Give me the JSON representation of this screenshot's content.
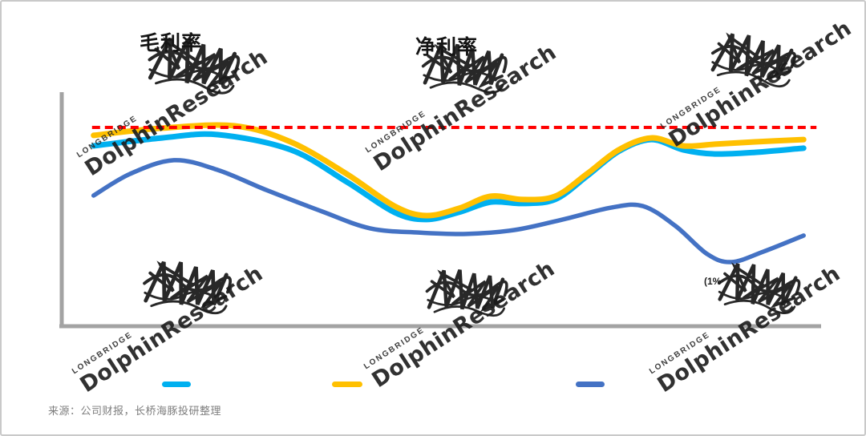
{
  "page": {
    "background": "#ffffff",
    "border_color": "#c9c9c9"
  },
  "titles": {
    "left": "毛利率",
    "center": "净利率"
  },
  "annotation": {
    "label": "(1%"
  },
  "source_note": "来源：公司财报，长桥海豚投研整理",
  "watermark": {
    "brand": "DolphinResearch",
    "subbrand": "LONGBRIDGE"
  },
  "legend": {
    "items": [
      {
        "name": "cyan-series",
        "color": "#00B0F0",
        "label": ""
      },
      {
        "name": "yellow-series",
        "color": "#FFC000",
        "label": ""
      },
      {
        "name": "blue-series",
        "color": "#4472C4",
        "label": ""
      }
    ]
  },
  "chart_data": {
    "type": "line",
    "title": "",
    "xlabel": "",
    "ylabel": "",
    "x_axis": {
      "range": [
        0,
        100
      ],
      "tick_labels_visible": false
    },
    "y_axis": {
      "range": [
        0,
        100
      ],
      "tick_labels_visible": false
    },
    "grid": false,
    "legend_position": "bottom",
    "axis_color": "#a3a3a3",
    "reference_line": {
      "name": "red-dashed-target",
      "value": 85.5,
      "x_range": [
        4.0,
        99.6
      ],
      "color": "#FF0000",
      "style": "dashed",
      "width": 4
    },
    "series": [
      {
        "name": "blue-line",
        "color": "#4472C4",
        "width": 5.5,
        "points": [
          [
            4.2,
            56.2
          ],
          [
            9.0,
            65.5
          ],
          [
            14.8,
            71.4
          ],
          [
            20.6,
            67.2
          ],
          [
            27.0,
            58.6
          ],
          [
            34.4,
            49.3
          ],
          [
            40.7,
            42.1
          ],
          [
            47.1,
            40.3
          ],
          [
            53.4,
            39.7
          ],
          [
            59.8,
            41.4
          ],
          [
            66.1,
            45.9
          ],
          [
            72.5,
            51.0
          ],
          [
            76.7,
            51.7
          ],
          [
            81.0,
            43.1
          ],
          [
            85.2,
            31.0
          ],
          [
            88.4,
            27.6
          ],
          [
            92.6,
            32.1
          ],
          [
            97.9,
            39.0
          ]
        ]
      },
      {
        "name": "cyan-line",
        "color": "#00B0F0",
        "width": 7,
        "points": [
          [
            4.2,
            77.6
          ],
          [
            13.2,
            81.0
          ],
          [
            20.6,
            82.4
          ],
          [
            30.2,
            75.9
          ],
          [
            37.6,
            62.1
          ],
          [
            43.9,
            49.0
          ],
          [
            48.1,
            45.9
          ],
          [
            52.4,
            49.0
          ],
          [
            56.6,
            53.4
          ],
          [
            60.8,
            52.8
          ],
          [
            65.1,
            54.5
          ],
          [
            69.3,
            64.5
          ],
          [
            73.5,
            75.2
          ],
          [
            77.8,
            80.3
          ],
          [
            82.0,
            75.9
          ],
          [
            86.2,
            74.1
          ],
          [
            91.5,
            74.8
          ],
          [
            97.9,
            76.6
          ]
        ]
      },
      {
        "name": "yellow-line",
        "color": "#FFC000",
        "width": 7,
        "points": [
          [
            4.2,
            82.1
          ],
          [
            13.2,
            85.2
          ],
          [
            22.8,
            86.2
          ],
          [
            30.2,
            79.3
          ],
          [
            37.6,
            65.5
          ],
          [
            43.9,
            51.7
          ],
          [
            48.1,
            47.6
          ],
          [
            52.4,
            50.7
          ],
          [
            56.6,
            55.9
          ],
          [
            60.8,
            54.5
          ],
          [
            65.1,
            55.9
          ],
          [
            69.3,
            65.5
          ],
          [
            73.5,
            75.9
          ],
          [
            77.8,
            81.0
          ],
          [
            82.0,
            77.6
          ],
          [
            86.2,
            78.3
          ],
          [
            91.5,
            79.3
          ],
          [
            97.9,
            80.3
          ]
        ]
      }
    ]
  }
}
